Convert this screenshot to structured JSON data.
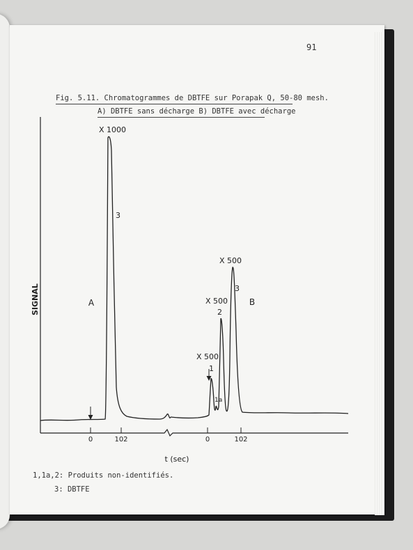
{
  "page": {
    "number": "91",
    "caption_line1": "Fig. 5.11. Chromatogrammes de DBTFE sur Porapak Q, 50-80 mesh.",
    "caption_line2": "A) DBTFE sans décharge B) DBTFE avec décharge",
    "legend_line1": "1,1a,2: Produits non-identifiés.",
    "legend_line2": "3: DBTFE"
  },
  "chart_data": {
    "type": "line",
    "ylabel": "SIGNAL",
    "xlabel": "t (sec)",
    "panels": [
      {
        "name": "A",
        "ticks": [
          "0",
          "102"
        ],
        "peaks": [
          {
            "label": "3",
            "scale": "X 1000"
          }
        ]
      },
      {
        "name": "B",
        "ticks": [
          "0",
          "102"
        ],
        "peaks": [
          {
            "label": "1",
            "scale": "X 500"
          },
          {
            "label": "1a",
            "scale": ""
          },
          {
            "label": "2",
            "scale": "X 500"
          },
          {
            "label": "3",
            "scale": "X 500"
          }
        ]
      }
    ]
  },
  "colors": {
    "page": "#f6f6f4",
    "ink": "#222222",
    "binding": "#1b1b1c"
  }
}
